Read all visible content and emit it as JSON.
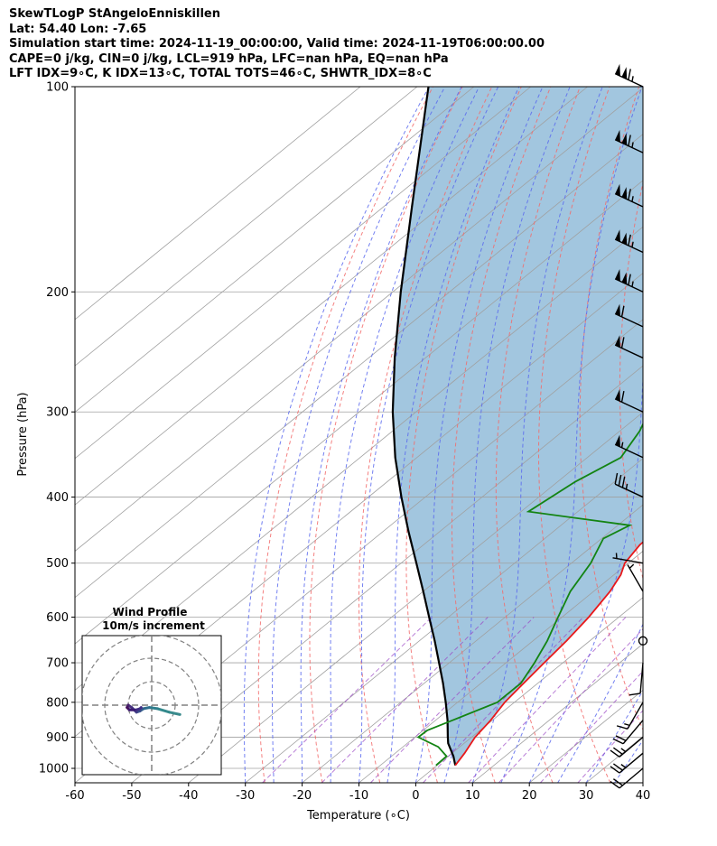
{
  "header": {
    "line1": "SkewTLogP StAngeloEnniskillen",
    "line2": "Lat: 54.40   Lon: -7.65",
    "line3": "Simulation start time: 2024-11-19_00:00:00, Valid time: 2024-11-19T06:00:00.00",
    "line4": "CAPE=0 j/kg, CIN=0 j/kg, LCL=919 hPa, LFC=nan hPa, EQ=nan hPa",
    "line5": "LFT IDX=9∘C, K IDX=13∘C, TOTAL TOTS=46∘C, SHWTR_IDX=8∘C"
  },
  "chart_data": {
    "type": "line",
    "xlabel": "Temperature (∘C)",
    "ylabel": "Pressure (hPa)",
    "xlim": [
      -60,
      40
    ],
    "ylim": [
      1050,
      100
    ],
    "y_scale": "log",
    "xticks": [
      -60,
      -50,
      -40,
      -30,
      -20,
      -10,
      0,
      10,
      20,
      30,
      40
    ],
    "yticks": [
      100,
      200,
      300,
      400,
      500,
      600,
      700,
      800,
      900,
      1000
    ],
    "grid": true,
    "colors": {
      "temperature": "#e8191b",
      "dewpoint": "#138413",
      "parcel": "#000000",
      "area": "#a2c6df",
      "isotherm": "#a0a0a0",
      "dry_adiabat": "#f26b6b",
      "moist_adiabat": "#5a6aef",
      "mixing_ratio": "#9a44c4"
    },
    "series": [
      {
        "key": "temperature",
        "pressure": [
          990,
          950,
          900,
          850,
          800,
          750,
          700,
          650,
          600,
          550,
          520,
          500,
          470,
          440,
          410,
          380,
          350,
          320,
          300,
          280,
          260,
          240,
          220,
          200,
          180,
          160,
          140,
          120,
          100
        ],
        "values": [
          3.2,
          2.2,
          0.6,
          -0.3,
          -1.7,
          -2.5,
          -3.3,
          -4.1,
          -5.3,
          -7.1,
          -8.8,
          -10.6,
          -11.9,
          -12.1,
          -11.6,
          -11.9,
          -12.0,
          -12.3,
          -12.3,
          -11.6,
          -10.6,
          -8.7,
          -6.4,
          -3.8,
          -0.4,
          2.7,
          5.9,
          8.8,
          12.9
        ]
      },
      {
        "key": "dewpoint",
        "pressure": [
          990,
          960,
          930,
          900,
          880,
          850,
          800,
          750,
          700,
          650,
          600,
          550,
          500,
          460,
          440,
          420,
          380,
          350,
          320,
          300,
          260,
          240,
          220,
          200,
          180,
          160,
          140,
          120,
          100
        ],
        "values": [
          -0.2,
          -0.3,
          -3.8,
          -9.4,
          -9.3,
          -7.0,
          -3.0,
          -3.0,
          -5.0,
          -7.5,
          -10.7,
          -14.1,
          -16.6,
          -19.7,
          -17.9,
          -38.7,
          -36.9,
          -34.1,
          -36.5,
          -39.0,
          -44.6,
          -46.5,
          -48.3,
          -51.9,
          -52.2,
          -50.9,
          -46.9,
          -41.4,
          -33.7
        ]
      },
      {
        "key": "parcel",
        "pressure": [
          990,
          960,
          919,
          900,
          850,
          800,
          750,
          700,
          650,
          600,
          550,
          500,
          450,
          400,
          350,
          300,
          250,
          200,
          150,
          100
        ],
        "values": [
          3.2,
          0.9,
          -2.8,
          -4.2,
          -7.9,
          -12.1,
          -16.7,
          -21.8,
          -27.3,
          -33.4,
          -40.0,
          -47.3,
          -55.4,
          -64.2,
          -73.8,
          -84.1,
          -95.4,
          -108.6,
          -125.0,
          -148.0
        ]
      }
    ],
    "wind_barbs": [
      {
        "pressure": 100,
        "speed_kt": 115,
        "dir": 295
      },
      {
        "pressure": 125,
        "speed_kt": 115,
        "dir": 295
      },
      {
        "pressure": 150,
        "speed_kt": 115,
        "dir": 295
      },
      {
        "pressure": 175,
        "speed_kt": 115,
        "dir": 295
      },
      {
        "pressure": 200,
        "speed_kt": 115,
        "dir": 295
      },
      {
        "pressure": 225,
        "speed_kt": 60,
        "dir": 295
      },
      {
        "pressure": 250,
        "speed_kt": 60,
        "dir": 295
      },
      {
        "pressure": 300,
        "speed_kt": 60,
        "dir": 295
      },
      {
        "pressure": 350,
        "speed_kt": 55,
        "dir": 295
      },
      {
        "pressure": 400,
        "speed_kt": 35,
        "dir": 295
      },
      {
        "pressure": 500,
        "speed_kt": 5,
        "dir": 280
      },
      {
        "pressure": 550,
        "speed_kt": 5,
        "dir": 330
      },
      {
        "pressure": 650,
        "speed_kt": 0,
        "dir": 0
      },
      {
        "pressure": 700,
        "speed_kt": 10,
        "dir": 185
      },
      {
        "pressure": 800,
        "speed_kt": 15,
        "dir": 210
      },
      {
        "pressure": 850,
        "speed_kt": 20,
        "dir": 220
      },
      {
        "pressure": 900,
        "speed_kt": 25,
        "dir": 230
      },
      {
        "pressure": 950,
        "speed_kt": 25,
        "dir": 230
      },
      {
        "pressure": 1000,
        "speed_kt": 20,
        "dir": 230
      }
    ],
    "inset": {
      "title_line1": "Wind Profile",
      "title_line2": "10m/s increment",
      "hodograph_u": [
        12.0,
        7.5,
        2.5,
        -1.0,
        -3.5,
        -5.0,
        -6.5,
        -8.5,
        -10.0,
        -10.5,
        -9.5,
        -6.5,
        -5.0,
        -4.5
      ],
      "hodograph_v": [
        -4.0,
        -3.0,
        -1.5,
        -1.0,
        -1.5,
        -2.5,
        -3.0,
        -1.0,
        0.0,
        -1.0,
        -2.0,
        -2.0,
        -1.5,
        -1.0
      ]
    }
  }
}
